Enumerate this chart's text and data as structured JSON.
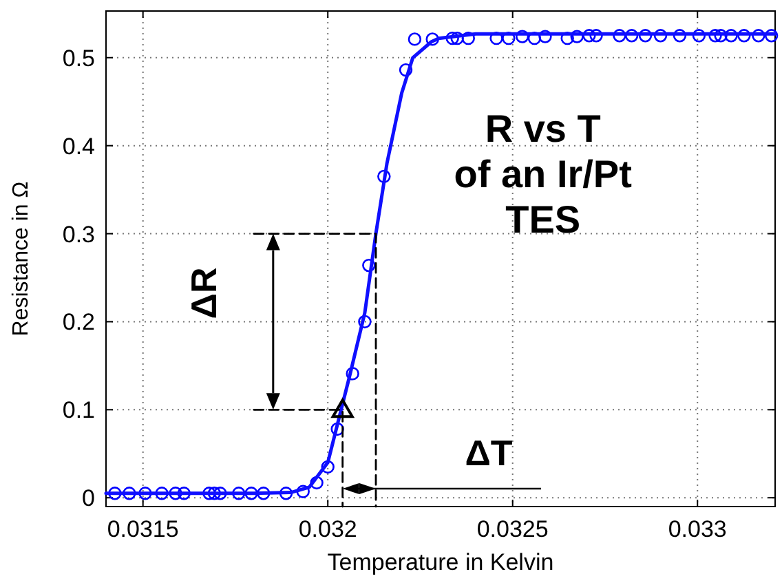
{
  "chart_data": {
    "type": "scatter",
    "xlabel": "Temperature in Kelvin",
    "ylabel": "Resistance in Ω",
    "xlim": [
      0.0314,
      0.03321
    ],
    "ylim": [
      -0.01,
      0.553
    ],
    "xticks": [
      0.0315,
      0.032,
      0.0325,
      0.033
    ],
    "yticks": [
      0,
      0.1,
      0.2,
      0.3,
      0.4,
      0.5
    ],
    "grid": true,
    "annotations": [
      "ΔR",
      "ΔT",
      "R vs T\nof an Ir/Pt\nTES"
    ],
    "series": [
      {
        "marker": "circle",
        "color": "#0000ff",
        "x": [
          0.031424,
          0.031463,
          0.031506,
          0.031551,
          0.031588,
          0.031611,
          0.031679,
          0.031693,
          0.031709,
          0.031759,
          0.031793,
          0.031826,
          0.031887,
          0.031933,
          0.03197,
          0.032,
          0.032026,
          0.032067,
          0.0321,
          0.032111,
          0.032152,
          0.032211,
          0.032235,
          0.032283,
          0.032337,
          0.03235,
          0.03238,
          0.032456,
          0.032489,
          0.032526,
          0.032559,
          0.032588,
          0.032648,
          0.032674,
          0.032707,
          0.032726,
          0.032789,
          0.032822,
          0.032859,
          0.0329,
          0.032952,
          0.033004,
          0.033048,
          0.033063,
          0.033091,
          0.033126,
          0.033165,
          0.0332
        ],
        "values": [
          0.005,
          0.005,
          0.005,
          0.005,
          0.005,
          0.005,
          0.005,
          0.005,
          0.005,
          0.005,
          0.005,
          0.005,
          0.005,
          0.007,
          0.017,
          0.035,
          0.078,
          0.141,
          0.2,
          0.264,
          0.365,
          0.486,
          0.521,
          0.521,
          0.522,
          0.522,
          0.522,
          0.522,
          0.522,
          0.524,
          0.522,
          0.524,
          0.522,
          0.524,
          0.525,
          0.525,
          0.525,
          0.525,
          0.525,
          0.525,
          0.525,
          0.525,
          0.525,
          0.525,
          0.525,
          0.525,
          0.525,
          0.525
        ]
      },
      {
        "type": "line",
        "marker": "none",
        "color": "#1010ff",
        "x": [
          0.0314,
          0.0318,
          0.0319,
          0.03195,
          0.032,
          0.03203,
          0.03206,
          0.0321,
          0.03213,
          0.03216,
          0.0322,
          0.03223,
          0.03228,
          0.0323,
          0.0324,
          0.03321
        ],
        "values": [
          0.005,
          0.005,
          0.006,
          0.012,
          0.04,
          0.09,
          0.14,
          0.21,
          0.3,
          0.38,
          0.46,
          0.5,
          0.518,
          0.522,
          0.527,
          0.527
        ]
      },
      {
        "type": "line",
        "marker": "none",
        "line_style": "dashed",
        "color": "#000000",
        "x": [
          0.0318,
          0.03213,
          0.03213
        ],
        "values": [
          0.3,
          0.3,
          -0.01
        ]
      },
      {
        "type": "line",
        "marker": "none",
        "line_style": "dashed",
        "color": "#000000",
        "x": [
          0.0318,
          0.03204,
          0.03204
        ],
        "values": [
          0.1,
          0.1,
          -0.01
        ]
      },
      {
        "type": "scatter",
        "marker": "triangle",
        "color": "#000000",
        "x": [
          0.03204
        ],
        "values": [
          0.1
        ]
      }
    ]
  }
}
